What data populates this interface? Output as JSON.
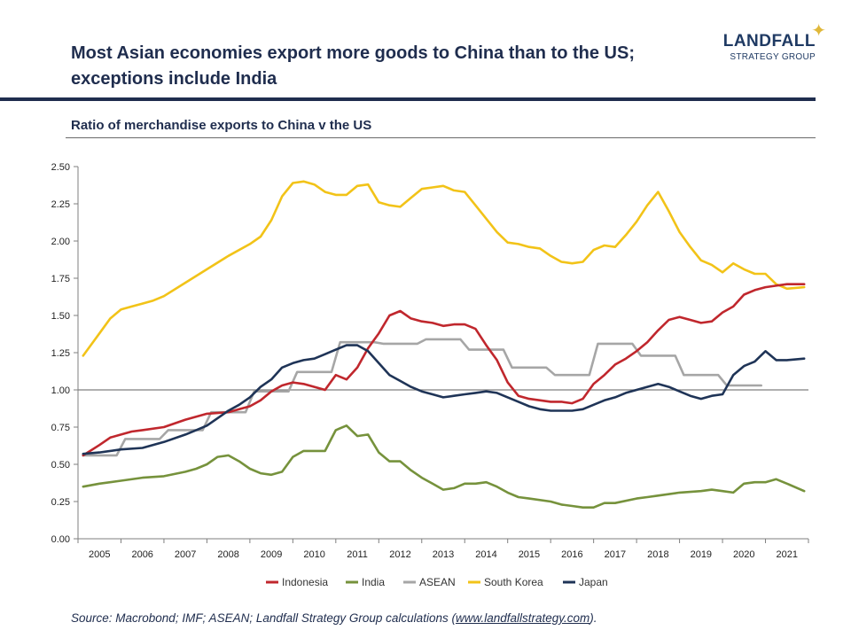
{
  "title_line1": "Most Asian economies export more goods to China than to the US;",
  "title_line2": "exceptions include India",
  "logo": {
    "main": "LANDFALL",
    "sub": "STRATEGY GROUP",
    "star_icon": "sparkle-star",
    "star_color": "#e0b83a"
  },
  "subtitle": "Ratio of merchandise exports to China v the US",
  "source": {
    "prefix": "Source: Macrobond; IMF; ASEAN; Landfall Strategy Group calculations (",
    "link": "www.landfallstrategy.com",
    "suffix": ")."
  },
  "chart_data": {
    "type": "line",
    "title": "",
    "xlabel": "",
    "ylabel": "",
    "ylim": [
      0,
      2.5
    ],
    "xlim": [
      2004.5,
      2021.5
    ],
    "yticks": [
      "0.00",
      "0.25",
      "0.50",
      "0.75",
      "1.00",
      "1.25",
      "1.50",
      "1.75",
      "2.00",
      "2.25",
      "2.50"
    ],
    "xticks": [
      "2005",
      "2006",
      "2007",
      "2008",
      "2009",
      "2010",
      "2011",
      "2012",
      "2013",
      "2014",
      "2015",
      "2016",
      "2017",
      "2018",
      "2019",
      "2020",
      "2021"
    ],
    "reference_line": 1.0,
    "grid": false,
    "legend_position": "bottom",
    "series": [
      {
        "name": "Indonesia",
        "color": "#c0272d",
        "points": [
          [
            2004.62,
            0.56
          ],
          [
            2005.0,
            0.63
          ],
          [
            2005.25,
            0.68
          ],
          [
            2005.5,
            0.7
          ],
          [
            2005.75,
            0.72
          ],
          [
            2006.0,
            0.73
          ],
          [
            2006.5,
            0.75
          ],
          [
            2007.0,
            0.8
          ],
          [
            2007.5,
            0.84
          ],
          [
            2008.0,
            0.85
          ],
          [
            2008.25,
            0.87
          ],
          [
            2008.5,
            0.89
          ],
          [
            2008.75,
            0.93
          ],
          [
            2009.0,
            0.99
          ],
          [
            2009.25,
            1.03
          ],
          [
            2009.5,
            1.05
          ],
          [
            2009.75,
            1.04
          ],
          [
            2010.0,
            1.02
          ],
          [
            2010.25,
            1.0
          ],
          [
            2010.5,
            1.1
          ],
          [
            2010.75,
            1.07
          ],
          [
            2011.0,
            1.15
          ],
          [
            2011.25,
            1.28
          ],
          [
            2011.5,
            1.38
          ],
          [
            2011.75,
            1.5
          ],
          [
            2012.0,
            1.53
          ],
          [
            2012.25,
            1.48
          ],
          [
            2012.5,
            1.46
          ],
          [
            2012.75,
            1.45
          ],
          [
            2013.0,
            1.43
          ],
          [
            2013.25,
            1.44
          ],
          [
            2013.5,
            1.44
          ],
          [
            2013.75,
            1.41
          ],
          [
            2014.0,
            1.3
          ],
          [
            2014.25,
            1.2
          ],
          [
            2014.5,
            1.05
          ],
          [
            2014.75,
            0.96
          ],
          [
            2015.0,
            0.94
          ],
          [
            2015.5,
            0.92
          ],
          [
            2015.75,
            0.92
          ],
          [
            2016.0,
            0.91
          ],
          [
            2016.25,
            0.94
          ],
          [
            2016.5,
            1.04
          ],
          [
            2016.75,
            1.1
          ],
          [
            2017.0,
            1.17
          ],
          [
            2017.25,
            1.21
          ],
          [
            2017.5,
            1.26
          ],
          [
            2017.75,
            1.32
          ],
          [
            2018.0,
            1.4
          ],
          [
            2018.25,
            1.47
          ],
          [
            2018.5,
            1.49
          ],
          [
            2018.75,
            1.47
          ],
          [
            2019.0,
            1.45
          ],
          [
            2019.25,
            1.46
          ],
          [
            2019.5,
            1.52
          ],
          [
            2019.75,
            1.56
          ],
          [
            2020.0,
            1.64
          ],
          [
            2020.25,
            1.67
          ],
          [
            2020.5,
            1.69
          ],
          [
            2020.75,
            1.7
          ],
          [
            2021.0,
            1.71
          ],
          [
            2021.4,
            1.71
          ]
        ]
      },
      {
        "name": "India",
        "color": "#76923c",
        "points": [
          [
            2004.62,
            0.35
          ],
          [
            2005.0,
            0.37
          ],
          [
            2005.5,
            0.39
          ],
          [
            2006.0,
            0.41
          ],
          [
            2006.5,
            0.42
          ],
          [
            2007.0,
            0.45
          ],
          [
            2007.25,
            0.47
          ],
          [
            2007.5,
            0.5
          ],
          [
            2007.75,
            0.55
          ],
          [
            2008.0,
            0.56
          ],
          [
            2008.25,
            0.52
          ],
          [
            2008.5,
            0.47
          ],
          [
            2008.75,
            0.44
          ],
          [
            2009.0,
            0.43
          ],
          [
            2009.25,
            0.45
          ],
          [
            2009.5,
            0.55
          ],
          [
            2009.75,
            0.59
          ],
          [
            2010.0,
            0.59
          ],
          [
            2010.25,
            0.59
          ],
          [
            2010.5,
            0.73
          ],
          [
            2010.75,
            0.76
          ],
          [
            2011.0,
            0.69
          ],
          [
            2011.25,
            0.7
          ],
          [
            2011.5,
            0.58
          ],
          [
            2011.75,
            0.52
          ],
          [
            2012.0,
            0.52
          ],
          [
            2012.25,
            0.46
          ],
          [
            2012.5,
            0.41
          ],
          [
            2012.75,
            0.37
          ],
          [
            2013.0,
            0.33
          ],
          [
            2013.25,
            0.34
          ],
          [
            2013.5,
            0.37
          ],
          [
            2013.75,
            0.37
          ],
          [
            2014.0,
            0.38
          ],
          [
            2014.25,
            0.35
          ],
          [
            2014.5,
            0.31
          ],
          [
            2014.75,
            0.28
          ],
          [
            2015.0,
            0.27
          ],
          [
            2015.5,
            0.25
          ],
          [
            2015.75,
            0.23
          ],
          [
            2016.0,
            0.22
          ],
          [
            2016.25,
            0.21
          ],
          [
            2016.5,
            0.21
          ],
          [
            2016.75,
            0.24
          ],
          [
            2017.0,
            0.24
          ],
          [
            2017.5,
            0.27
          ],
          [
            2017.75,
            0.28
          ],
          [
            2018.0,
            0.29
          ],
          [
            2018.5,
            0.31
          ],
          [
            2019.0,
            0.32
          ],
          [
            2019.25,
            0.33
          ],
          [
            2019.5,
            0.32
          ],
          [
            2019.75,
            0.31
          ],
          [
            2020.0,
            0.37
          ],
          [
            2020.25,
            0.38
          ],
          [
            2020.5,
            0.38
          ],
          [
            2020.75,
            0.4
          ],
          [
            2021.0,
            0.37
          ],
          [
            2021.4,
            0.32
          ]
        ]
      },
      {
        "name": "ASEAN",
        "color": "#a6a6a6",
        "points": [
          [
            2004.62,
            0.56
          ],
          [
            2005.4,
            0.56
          ],
          [
            2005.6,
            0.67
          ],
          [
            2006.4,
            0.67
          ],
          [
            2006.6,
            0.73
          ],
          [
            2007.4,
            0.73
          ],
          [
            2007.6,
            0.85
          ],
          [
            2008.4,
            0.85
          ],
          [
            2008.6,
            0.99
          ],
          [
            2009.4,
            0.99
          ],
          [
            2009.6,
            1.12
          ],
          [
            2010.4,
            1.12
          ],
          [
            2010.6,
            1.32
          ],
          [
            2011.4,
            1.32
          ],
          [
            2011.6,
            1.31
          ],
          [
            2012.4,
            1.31
          ],
          [
            2012.6,
            1.34
          ],
          [
            2013.4,
            1.34
          ],
          [
            2013.6,
            1.27
          ],
          [
            2014.4,
            1.27
          ],
          [
            2014.6,
            1.15
          ],
          [
            2015.4,
            1.15
          ],
          [
            2015.6,
            1.1
          ],
          [
            2016.4,
            1.1
          ],
          [
            2016.6,
            1.31
          ],
          [
            2017.4,
            1.31
          ],
          [
            2017.6,
            1.23
          ],
          [
            2018.4,
            1.23
          ],
          [
            2018.6,
            1.1
          ],
          [
            2019.4,
            1.1
          ],
          [
            2019.6,
            1.03
          ],
          [
            2020.4,
            1.03
          ]
        ]
      },
      {
        "name": "South Korea",
        "color": "#f2c318",
        "points": [
          [
            2004.62,
            1.23
          ],
          [
            2005.0,
            1.38
          ],
          [
            2005.25,
            1.48
          ],
          [
            2005.5,
            1.54
          ],
          [
            2005.75,
            1.56
          ],
          [
            2006.0,
            1.58
          ],
          [
            2006.25,
            1.6
          ],
          [
            2006.5,
            1.63
          ],
          [
            2007.0,
            1.72
          ],
          [
            2007.5,
            1.81
          ],
          [
            2008.0,
            1.9
          ],
          [
            2008.5,
            1.98
          ],
          [
            2008.75,
            2.03
          ],
          [
            2009.0,
            2.14
          ],
          [
            2009.25,
            2.3
          ],
          [
            2009.5,
            2.39
          ],
          [
            2009.75,
            2.4
          ],
          [
            2010.0,
            2.38
          ],
          [
            2010.25,
            2.33
          ],
          [
            2010.5,
            2.31
          ],
          [
            2010.75,
            2.31
          ],
          [
            2011.0,
            2.37
          ],
          [
            2011.25,
            2.38
          ],
          [
            2011.5,
            2.26
          ],
          [
            2011.75,
            2.24
          ],
          [
            2012.0,
            2.23
          ],
          [
            2012.25,
            2.29
          ],
          [
            2012.5,
            2.35
          ],
          [
            2012.75,
            2.36
          ],
          [
            2013.0,
            2.37
          ],
          [
            2013.25,
            2.34
          ],
          [
            2013.5,
            2.33
          ],
          [
            2013.75,
            2.24
          ],
          [
            2014.0,
            2.15
          ],
          [
            2014.25,
            2.06
          ],
          [
            2014.5,
            1.99
          ],
          [
            2014.75,
            1.98
          ],
          [
            2015.0,
            1.96
          ],
          [
            2015.25,
            1.95
          ],
          [
            2015.5,
            1.9
          ],
          [
            2015.75,
            1.86
          ],
          [
            2016.0,
            1.85
          ],
          [
            2016.25,
            1.86
          ],
          [
            2016.5,
            1.94
          ],
          [
            2016.75,
            1.97
          ],
          [
            2017.0,
            1.96
          ],
          [
            2017.25,
            2.04
          ],
          [
            2017.5,
            2.13
          ],
          [
            2017.75,
            2.24
          ],
          [
            2018.0,
            2.33
          ],
          [
            2018.25,
            2.2
          ],
          [
            2018.5,
            2.06
          ],
          [
            2018.75,
            1.96
          ],
          [
            2019.0,
            1.87
          ],
          [
            2019.25,
            1.84
          ],
          [
            2019.5,
            1.79
          ],
          [
            2019.75,
            1.85
          ],
          [
            2020.0,
            1.81
          ],
          [
            2020.25,
            1.78
          ],
          [
            2020.5,
            1.78
          ],
          [
            2020.75,
            1.71
          ],
          [
            2021.0,
            1.68
          ],
          [
            2021.4,
            1.69
          ]
        ]
      },
      {
        "name": "Japan",
        "color": "#1f3457",
        "points": [
          [
            2004.62,
            0.57
          ],
          [
            2005.0,
            0.58
          ],
          [
            2005.5,
            0.6
          ],
          [
            2006.0,
            0.61
          ],
          [
            2006.5,
            0.65
          ],
          [
            2007.0,
            0.7
          ],
          [
            2007.25,
            0.73
          ],
          [
            2007.5,
            0.76
          ],
          [
            2007.75,
            0.81
          ],
          [
            2008.0,
            0.86
          ],
          [
            2008.25,
            0.9
          ],
          [
            2008.5,
            0.95
          ],
          [
            2008.75,
            1.02
          ],
          [
            2009.0,
            1.07
          ],
          [
            2009.25,
            1.15
          ],
          [
            2009.5,
            1.18
          ],
          [
            2009.75,
            1.2
          ],
          [
            2010.0,
            1.21
          ],
          [
            2010.25,
            1.24
          ],
          [
            2010.5,
            1.27
          ],
          [
            2010.75,
            1.3
          ],
          [
            2011.0,
            1.3
          ],
          [
            2011.25,
            1.26
          ],
          [
            2011.5,
            1.18
          ],
          [
            2011.75,
            1.1
          ],
          [
            2012.0,
            1.06
          ],
          [
            2012.25,
            1.02
          ],
          [
            2012.5,
            0.99
          ],
          [
            2012.75,
            0.97
          ],
          [
            2013.0,
            0.95
          ],
          [
            2013.25,
            0.96
          ],
          [
            2013.5,
            0.97
          ],
          [
            2013.75,
            0.98
          ],
          [
            2014.0,
            0.99
          ],
          [
            2014.25,
            0.98
          ],
          [
            2014.5,
            0.95
          ],
          [
            2014.75,
            0.92
          ],
          [
            2015.0,
            0.89
          ],
          [
            2015.25,
            0.87
          ],
          [
            2015.5,
            0.86
          ],
          [
            2015.75,
            0.86
          ],
          [
            2016.0,
            0.86
          ],
          [
            2016.25,
            0.87
          ],
          [
            2016.5,
            0.9
          ],
          [
            2016.75,
            0.93
          ],
          [
            2017.0,
            0.95
          ],
          [
            2017.25,
            0.98
          ],
          [
            2017.5,
            1.0
          ],
          [
            2017.75,
            1.02
          ],
          [
            2018.0,
            1.04
          ],
          [
            2018.25,
            1.02
          ],
          [
            2018.5,
            0.99
          ],
          [
            2018.75,
            0.96
          ],
          [
            2019.0,
            0.94
          ],
          [
            2019.25,
            0.96
          ],
          [
            2019.5,
            0.97
          ],
          [
            2019.75,
            1.1
          ],
          [
            2020.0,
            1.16
          ],
          [
            2020.25,
            1.19
          ],
          [
            2020.5,
            1.26
          ],
          [
            2020.75,
            1.2
          ],
          [
            2021.0,
            1.2
          ],
          [
            2021.4,
            1.21
          ]
        ]
      }
    ]
  }
}
